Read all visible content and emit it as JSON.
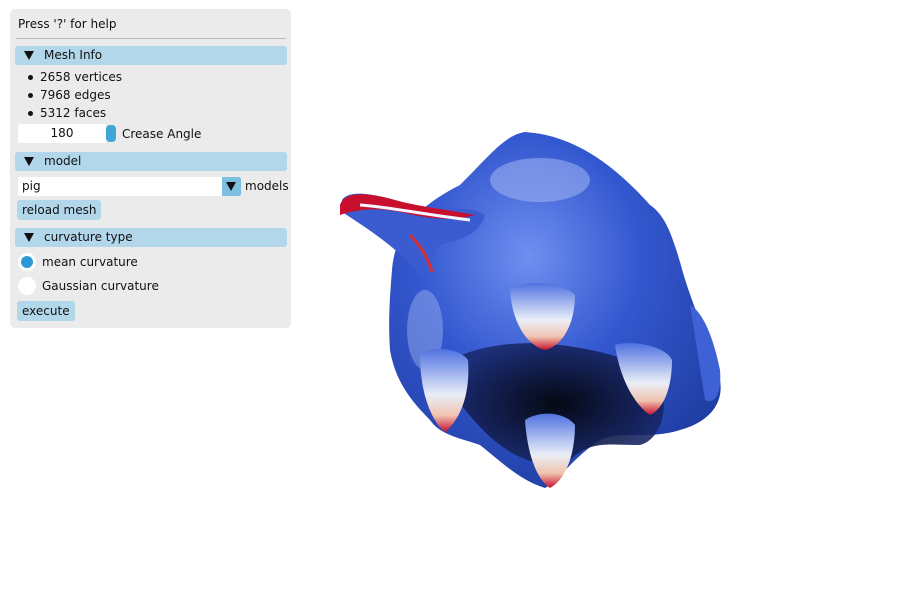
{
  "help_text": "Press '?' for help",
  "mesh_info": {
    "header": "Mesh Info",
    "vertices": "2658 vertices",
    "edges": "7968 edges",
    "faces": "5312 faces",
    "crease_angle_value": "180",
    "crease_angle_label": "Crease Angle"
  },
  "model": {
    "header": "model",
    "selected": "pig",
    "combo_label": "models",
    "reload_button": "reload mesh"
  },
  "curvature": {
    "header": "curvature type",
    "options": [
      "mean curvature",
      "Gaussian curvature"
    ],
    "selected_index": 0,
    "execute_button": "execute"
  },
  "colors": {
    "panel_bg": "#ebebeb",
    "header_bg": "#b2d7ea",
    "accent": "#3fa6d8",
    "mesh_blue": "#2f57c8",
    "mesh_red": "#c8102e"
  }
}
